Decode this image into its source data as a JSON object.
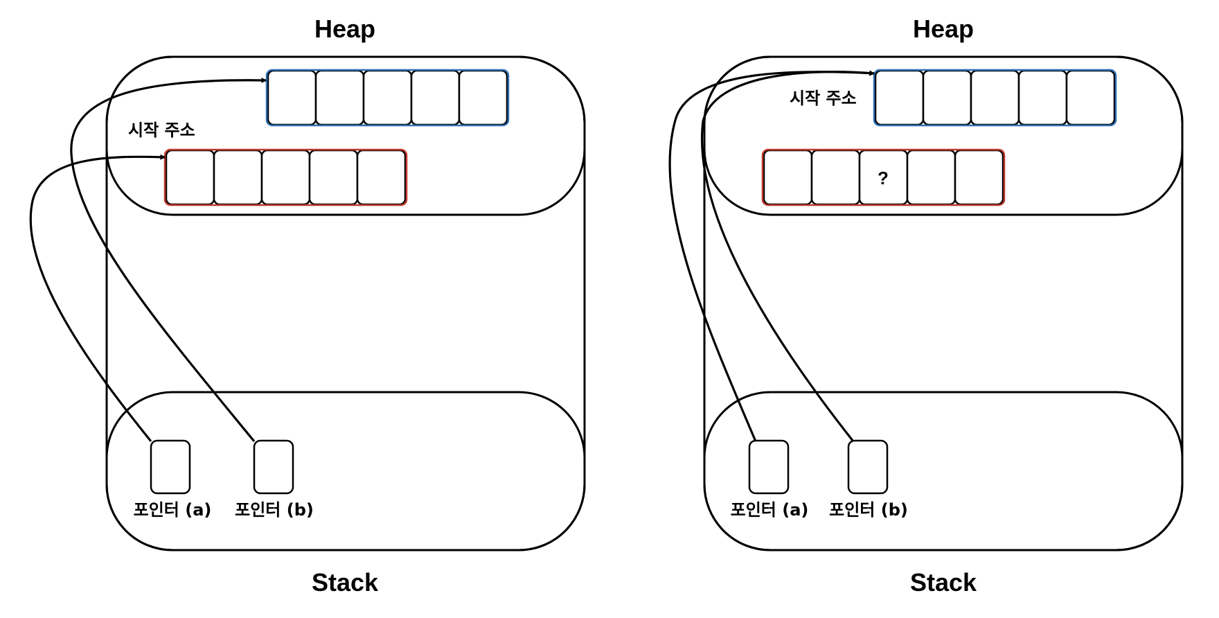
{
  "colors": {
    "array_a_border": "#c0392b",
    "array_b_border": "#2e6db4",
    "line": "#000000"
  },
  "panels": [
    {
      "heap_label": "Heap",
      "stack_label": "Stack",
      "start_address_label": "시작 주소",
      "pointer_a_label": "포인터 (a)",
      "pointer_b_label": "포인터 (b)",
      "array_a_cells": [
        "",
        "",
        "",
        "",
        ""
      ],
      "array_b_cells": [
        "",
        "",
        "",
        "",
        ""
      ]
    },
    {
      "heap_label": "Heap",
      "stack_label": "Stack",
      "start_address_label": "시작 주소",
      "pointer_a_label": "포인터 (a)",
      "pointer_b_label": "포인터 (b)",
      "array_a_cells": [
        "",
        "",
        "?",
        "",
        ""
      ],
      "array_b_cells": [
        "",
        "",
        "",
        "",
        ""
      ]
    }
  ]
}
